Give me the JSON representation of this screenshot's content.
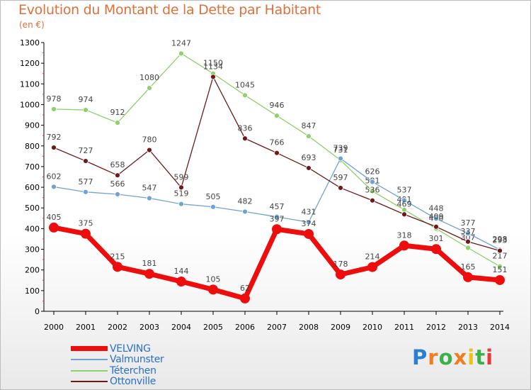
{
  "title": "Evolution du Montant de la Dette par Habitant",
  "subtitle": "(en €)",
  "logo": {
    "text": "Proxiti"
  },
  "chart_data": {
    "type": "line",
    "ylim": [
      0,
      1300
    ],
    "yticks": [
      0,
      100,
      200,
      300,
      400,
      500,
      600,
      700,
      800,
      900,
      1000,
      1100,
      1200,
      1300
    ],
    "x": [
      "2000",
      "2001",
      "2002",
      "2003",
      "2004",
      "2005",
      "2006",
      "2007",
      "2008",
      "2009",
      "2010",
      "2011",
      "2012",
      "2013",
      "2014"
    ],
    "grid": false,
    "legend": "bottom-left",
    "series": [
      {
        "name": "Téterchen",
        "color": "#8ed16a",
        "values": [
          978,
          974,
          912,
          1080,
          1247,
          1150,
          1045,
          946,
          847,
          731,
          581,
          491,
          400,
          307,
          217
        ]
      },
      {
        "name": "Valmunster",
        "color": "#6fa2d6",
        "values": [
          602,
          577,
          566,
          547,
          519,
          505,
          482,
          457,
          431,
          739,
          626,
          537,
          448,
          377,
          298
        ]
      },
      {
        "name": "Ottonville",
        "color": "#6e1a1a",
        "values": [
          792,
          727,
          658,
          780,
          599,
          1134,
          836,
          766,
          693,
          597,
          536,
          469,
          409,
          337,
          293
        ]
      },
      {
        "name": "VELVING",
        "color": "#ee0d0d",
        "values": [
          405,
          375,
          215,
          181,
          144,
          105,
          62,
          397,
          374,
          178,
          214,
          318,
          301,
          165,
          151
        ]
      }
    ]
  }
}
